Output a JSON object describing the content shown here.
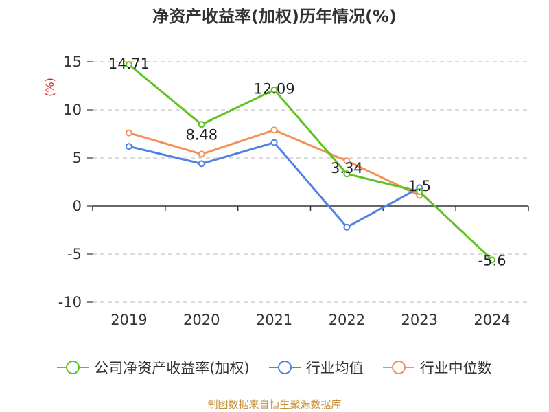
{
  "chart_data": {
    "type": "line",
    "title": "净资产收益率(加权)历年情况(%)",
    "ylabel": "(%)",
    "xlabel": "",
    "ylim": [
      -10,
      15
    ],
    "yticks": [
      15,
      10,
      5,
      0,
      -5,
      -10
    ],
    "categories": [
      "2019",
      "2020",
      "2021",
      "2022",
      "2023",
      "2024"
    ],
    "series": [
      {
        "name": "公司净资产收益率(加权)",
        "color": "#5ec31e",
        "values": [
          14.71,
          8.48,
          12.09,
          3.34,
          1.5,
          -5.6
        ],
        "labels": [
          "14.71",
          "8.48",
          "12.09",
          "3.34",
          "1.5",
          "-5.6"
        ]
      },
      {
        "name": "行业均值",
        "color": "#4f81e3",
        "values": [
          6.2,
          4.4,
          6.6,
          -2.2,
          1.9,
          null
        ]
      },
      {
        "name": "行业中位数",
        "color": "#f49057",
        "values": [
          7.6,
          5.4,
          7.9,
          4.7,
          1.1,
          null
        ]
      }
    ],
    "grid": true,
    "legend_position": "bottom"
  },
  "source_note": "制图数据来自恒生聚源数据库"
}
